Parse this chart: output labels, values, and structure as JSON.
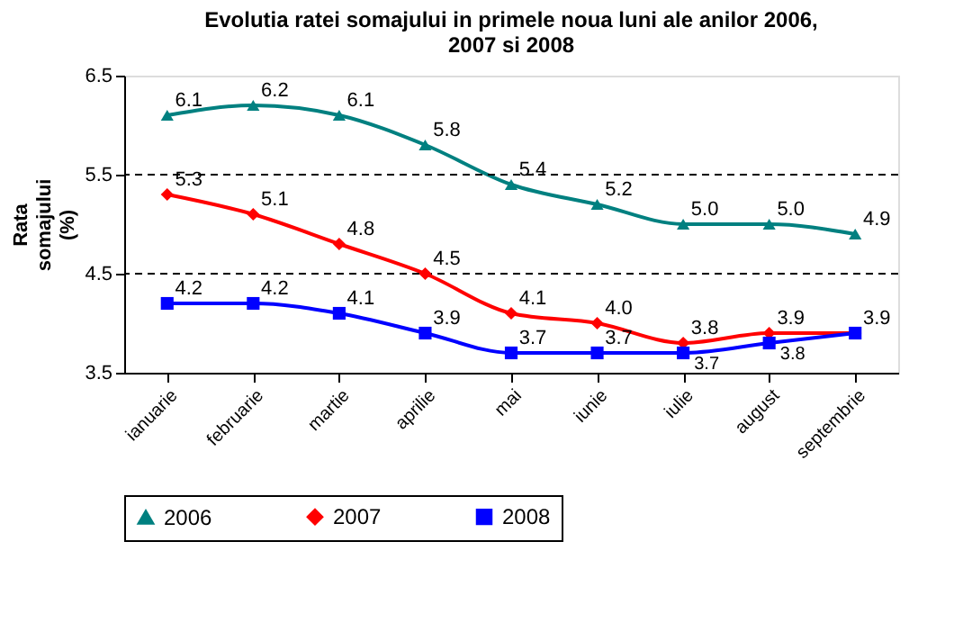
{
  "chart_data": {
    "type": "line",
    "title": "Evolutia ratei somajului in primele noua luni ale anilor 2006, 2007 si 2008",
    "ylabel": "Rata somajului (%)",
    "categories": [
      "ianuarie",
      "februarie",
      "martie",
      "aprilie",
      "mai",
      "iunie",
      "iulie",
      "august",
      "septembrie"
    ],
    "series": [
      {
        "name": "2006",
        "color": "#008080",
        "marker": "triangle",
        "values": [
          6.1,
          6.2,
          6.1,
          5.8,
          5.4,
          5.2,
          5.0,
          5.0,
          4.9
        ],
        "value_labels": [
          "6.1",
          "6.2",
          "6.1",
          "5.8",
          "5.4",
          "5.2",
          "5.0",
          "5.0",
          "4.9"
        ]
      },
      {
        "name": "2007",
        "color": "#ff0000",
        "marker": "diamond",
        "values": [
          5.3,
          5.1,
          4.8,
          4.5,
          4.1,
          4.0,
          3.8,
          3.9,
          3.9
        ],
        "value_labels": [
          "5.3",
          "5.1",
          "4.8",
          "4.5",
          "4.1",
          "4.0",
          "3.8",
          "3.9",
          null
        ]
      },
      {
        "name": "2008",
        "color": "#0000ff",
        "marker": "square",
        "values": [
          4.2,
          4.2,
          4.1,
          3.9,
          3.7,
          3.7,
          3.7,
          3.8,
          3.9
        ],
        "value_labels": [
          "4.2",
          "4.2",
          "4.1",
          "3.9",
          "3.7",
          "3.7",
          "3.7",
          "3.8",
          "3.9"
        ]
      }
    ],
    "ylim": [
      3.5,
      6.5
    ],
    "yticks": [
      3.5,
      4.5,
      5.5,
      6.5
    ],
    "grid": "y",
    "legend": "bottom"
  }
}
